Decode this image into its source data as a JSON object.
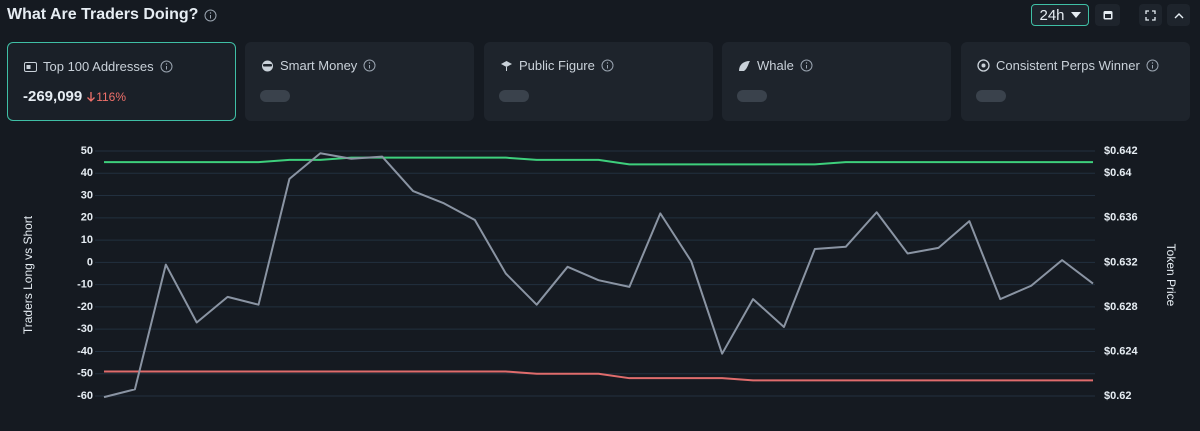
{
  "header": {
    "title": "What Are Traders Doing?",
    "timeframe": "24h"
  },
  "cards": [
    {
      "label": "Top 100 Addresses",
      "value": "-269,099",
      "change": "116%"
    },
    {
      "label": "Smart Money"
    },
    {
      "label": "Public Figure"
    },
    {
      "label": "Whale"
    },
    {
      "label": "Consistent Perps Winner"
    }
  ],
  "chart_data": {
    "type": "line",
    "y_label": "Traders Long vs Short",
    "y2_label": "Token Price",
    "categories": [
      null,
      null,
      null,
      null,
      null,
      null,
      null,
      null,
      null,
      null,
      null,
      null,
      null,
      null,
      null,
      null,
      null,
      null,
      null,
      null,
      null,
      null,
      null,
      null,
      null,
      null,
      null,
      null,
      null,
      null,
      null,
      null,
      null
    ],
    "ylim": [
      -60,
      50
    ],
    "yticks": [
      -60,
      -50,
      -40,
      -30,
      -20,
      -10,
      0,
      10,
      20,
      30,
      40,
      50
    ],
    "y2lim": [
      0.62,
      0.642
    ],
    "y2ticks": [
      {
        "value": 0.62,
        "label": "$0.62"
      },
      {
        "value": 0.624,
        "label": "$0.624"
      },
      {
        "value": 0.628,
        "label": "$0.628"
      },
      {
        "value": 0.632,
        "label": "$0.632"
      },
      {
        "value": 0.636,
        "label": "$0.636"
      },
      {
        "value": 0.64,
        "label": "$0.64"
      },
      {
        "value": 0.642,
        "label": "$0.642"
      }
    ],
    "grid": true,
    "series": [
      {
        "color": "#3ecf7c",
        "values": [
          45,
          45,
          45,
          45,
          45,
          45,
          46,
          46,
          47,
          47,
          47,
          47,
          47,
          47,
          46,
          46,
          46,
          44,
          44,
          44,
          44,
          44,
          44,
          44,
          45,
          45,
          45,
          45,
          45,
          45,
          45,
          45,
          45
        ]
      },
      {
        "color": "#e06c6c",
        "values": [
          -49,
          -49,
          -49,
          -49,
          -49,
          -49,
          -49,
          -49,
          -49,
          -49,
          -49,
          -49,
          -49,
          -49,
          -50,
          -50,
          -50,
          -52,
          -52,
          -52,
          -52,
          -53,
          -53,
          -53,
          -53,
          -53,
          -53,
          -53,
          -53,
          -53,
          -53,
          -53,
          -53
        ]
      },
      {
        "color": "#8a94a3",
        "axis": "y2",
        "values": [
          0.6199,
          0.6206,
          0.6318,
          0.6266,
          0.6289,
          0.6282,
          0.6395,
          0.6418,
          0.6413,
          0.6415,
          0.6384,
          0.6373,
          0.6358,
          0.631,
          0.6282,
          0.6316,
          0.6304,
          0.6298,
          0.6364,
          0.6321,
          0.6238,
          0.6287,
          0.6262,
          0.6332,
          0.6334,
          0.6365,
          0.6328,
          0.6333,
          0.6357,
          0.6287,
          0.6299,
          0.6322,
          0.6301
        ]
      }
    ]
  }
}
